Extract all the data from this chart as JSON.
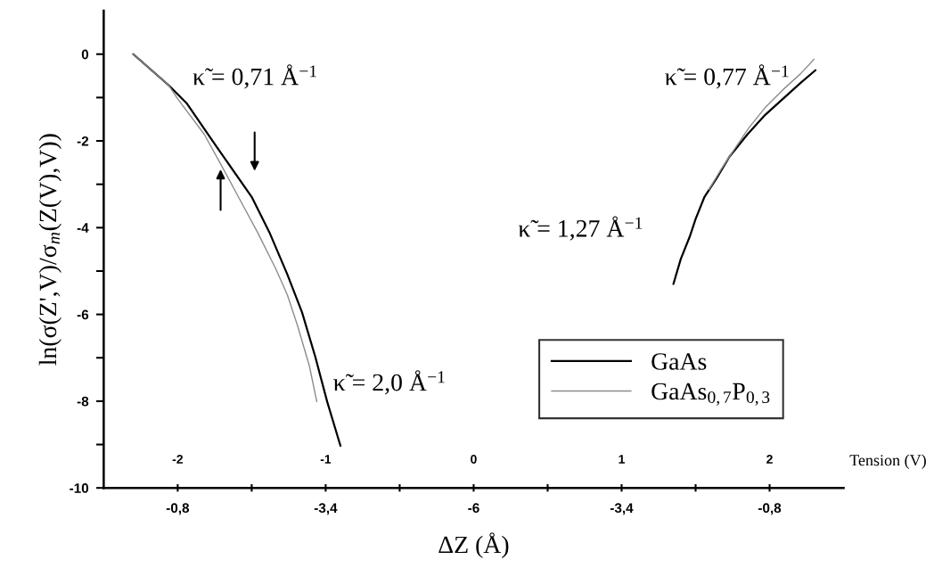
{
  "chart_data": {
    "type": "line",
    "xlabel": "Tension (V)",
    "ylabel": "ln(σ(Z',V)/σ$_{m}$(Z(V),V))",
    "xlim": [
      -2.5,
      2.5
    ],
    "ylim": [
      -10,
      1
    ],
    "xticks": [
      -2,
      {
        "value": -1.5,
        "label": null
      },
      -1,
      {
        "value": -0.5,
        "label": null
      },
      0,
      {
        "value": 0.5,
        "label": null
      },
      1,
      {
        "value": 1.5,
        "label": null
      },
      2
    ],
    "yticks": [
      -10,
      {
        "value": -9,
        "label": null
      },
      -8,
      {
        "value": -7,
        "label": null
      },
      -6,
      {
        "value": -5,
        "label": null
      },
      -4,
      {
        "value": -3,
        "label": null
      },
      -2,
      {
        "value": -1,
        "label": null
      },
      0
    ],
    "grid": false,
    "legend": "bottom right",
    "marker": "none",
    "line_style": "solid",
    "series": [
      {
        "name": "GaAs",
        "color": "#000000",
        "x": [
          -2.3,
          -2.06,
          -1.94,
          -1.74,
          -1.5,
          -1.38,
          -1.26,
          -1.16,
          -1.07,
          -0.99,
          -0.9,
          0,
          1.35,
          1.4,
          1.46,
          1.5,
          1.56,
          1.64,
          1.73,
          1.85,
          1.97,
          2.09,
          2.21,
          2.31
        ],
        "values": [
          0,
          -0.72,
          -1.13,
          -2.12,
          -3.29,
          -4.11,
          -5.07,
          -5.95,
          -6.98,
          -8.01,
          -9.03,
          null,
          -5.3,
          -4.72,
          -4.21,
          -3.8,
          -3.29,
          -2.87,
          -2.36,
          -1.85,
          -1.4,
          -1.03,
          -0.66,
          -0.37
        ]
      },
      {
        "name": "GaAs$_{0,7}$P$_{0,3}$",
        "color": "#8c8c8c",
        "x": [
          -2.3,
          -2.06,
          -2.0,
          -1.82,
          -1.71,
          -1.59,
          -1.46,
          -1.34,
          -1.26,
          -1.19,
          -1.11,
          -1.06,
          0,
          1.59,
          1.67,
          1.76,
          1.86,
          1.97,
          2.09,
          2.21,
          2.3
        ],
        "values": [
          0,
          -0.72,
          -1.03,
          -1.85,
          -2.53,
          -3.29,
          -4.11,
          -4.93,
          -5.54,
          -6.26,
          -7.19,
          -8.01,
          null,
          -3.12,
          -2.67,
          -2.2,
          -1.7,
          -1.23,
          -0.82,
          -0.45,
          -0.12
        ]
      }
    ],
    "annotations": [
      "κ̃ = 0,71 Å$^{−1}$",
      "κ̃ = 2,0 Å$^{−1}$",
      "κ̃ = 0,77 Å$^{−1}$",
      "κ̃ = 1,27 Å$^{−1}$",
      "-0,8",
      "-3,4",
      "-6",
      "-3,4",
      "-0,8",
      "ΔZ (Å)"
    ]
  }
}
